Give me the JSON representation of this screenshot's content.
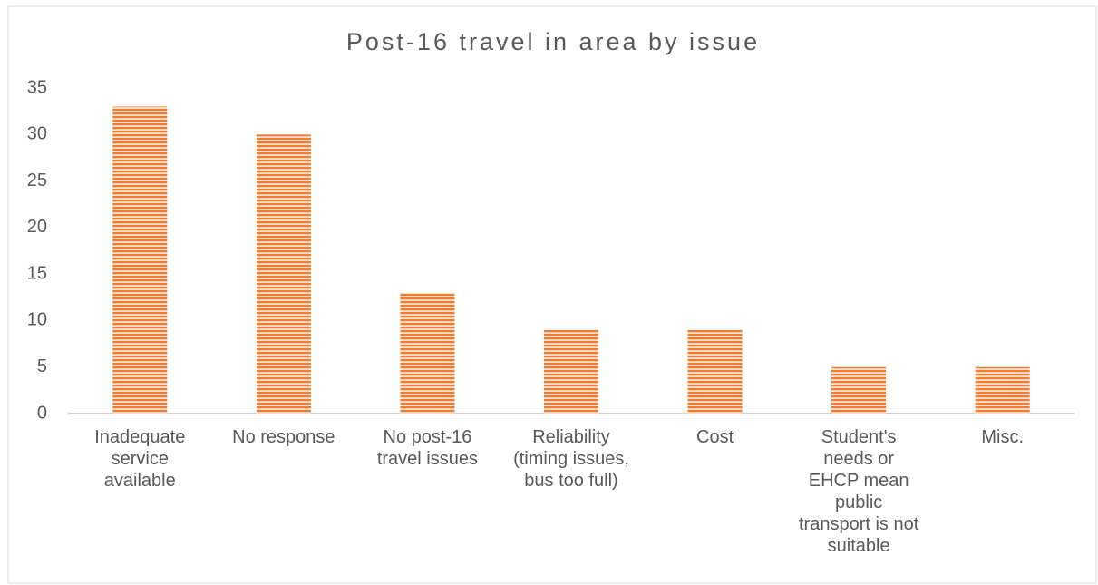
{
  "chart_data": {
    "type": "bar",
    "title": "Post-16 travel in area by issue",
    "categories": [
      "Inadequate service available",
      "No response",
      "No post-16 travel issues",
      "Reliability (timing issues, bus too full)",
      "Cost",
      "Student's needs or EHCP mean public transport is not suitable",
      "Misc."
    ],
    "values": [
      33,
      30,
      13,
      9,
      9,
      5,
      5
    ],
    "color": "#ed7d31",
    "ylim": [
      0,
      35
    ],
    "yticks": [
      0,
      5,
      10,
      15,
      20,
      25,
      30,
      35
    ],
    "grid": false
  }
}
